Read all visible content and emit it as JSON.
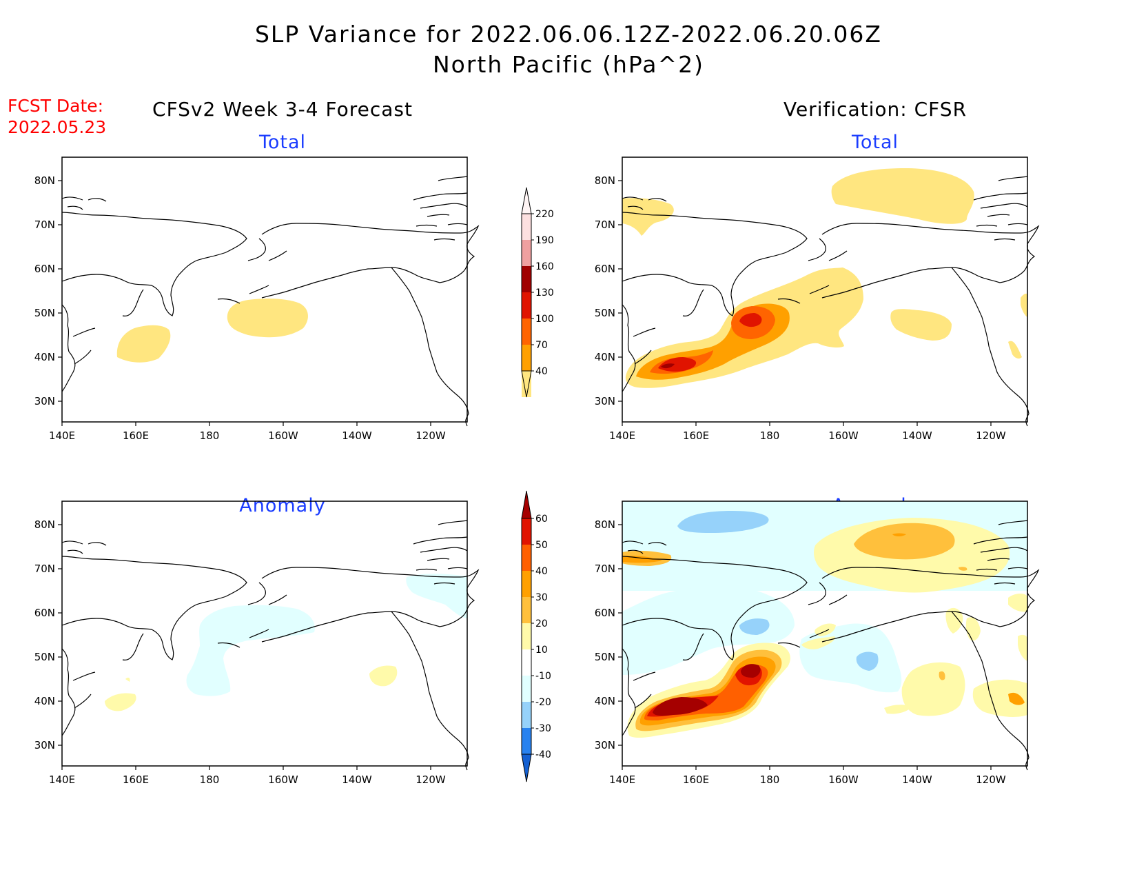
{
  "title_line1": "SLP Variance for 2022.06.06.12Z-2022.06.20.06Z",
  "title_line2": "North Pacific (hPa^2)",
  "fcst_label": "FCST Date:",
  "fcst_date": "2022.05.23",
  "left_header": "CFSv2 Week 3-4 Forecast",
  "right_header": "Verification: CFSR",
  "colors": {
    "title": "#000000",
    "fcst": "#ff0000",
    "subtitle": "#1a3cff",
    "land_line": "#000000"
  },
  "panels": [
    {
      "id": "forecast-total",
      "subtitle": "Total"
    },
    {
      "id": "verification-total",
      "subtitle": "Total"
    },
    {
      "id": "forecast-anomaly",
      "subtitle": "Anomaly"
    },
    {
      "id": "verification-anomaly",
      "subtitle": "Anomaly"
    }
  ],
  "axes": {
    "lon_ticks": [
      "140E",
      "160E",
      "180",
      "160W",
      "140W",
      "120W"
    ],
    "lat_ticks": [
      "80N",
      "70N",
      "60N",
      "50N",
      "40N",
      "30N"
    ]
  },
  "colorbar_total": {
    "labels": [
      "40",
      "70",
      "100",
      "130",
      "160",
      "190",
      "220"
    ],
    "colors": [
      "#ffe680",
      "#ffa000",
      "#ff6400",
      "#e01400",
      "#a00000",
      "#f0a0a0",
      "#fde0e0"
    ]
  },
  "colorbar_anomaly": {
    "labels": [
      "-40",
      "-30",
      "-20",
      "-10",
      "10",
      "20",
      "30",
      "40",
      "50",
      "60"
    ],
    "colors": [
      "#1460d2",
      "#2882f0",
      "#96d2fa",
      "#e1ffff",
      "#ffffff",
      "#fffaaa",
      "#ffc03c",
      "#ffa000",
      "#ff6000",
      "#e11400",
      "#a50000"
    ]
  }
}
